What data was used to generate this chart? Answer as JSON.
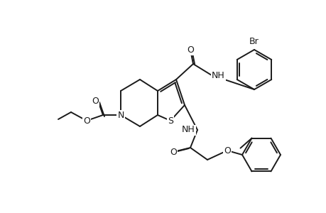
{
  "background_color": "#ffffff",
  "line_color": "#1a1a1a",
  "line_width": 1.4,
  "font_size": 8.5,
  "atoms": {
    "N": "N",
    "S": "S",
    "NH_top": "NH",
    "NH_bot": "NH",
    "O_carb": "O",
    "O_ester": "O",
    "O_amide1": "O",
    "O_amide2": "O",
    "O_ether": "O",
    "Br": "Br"
  }
}
